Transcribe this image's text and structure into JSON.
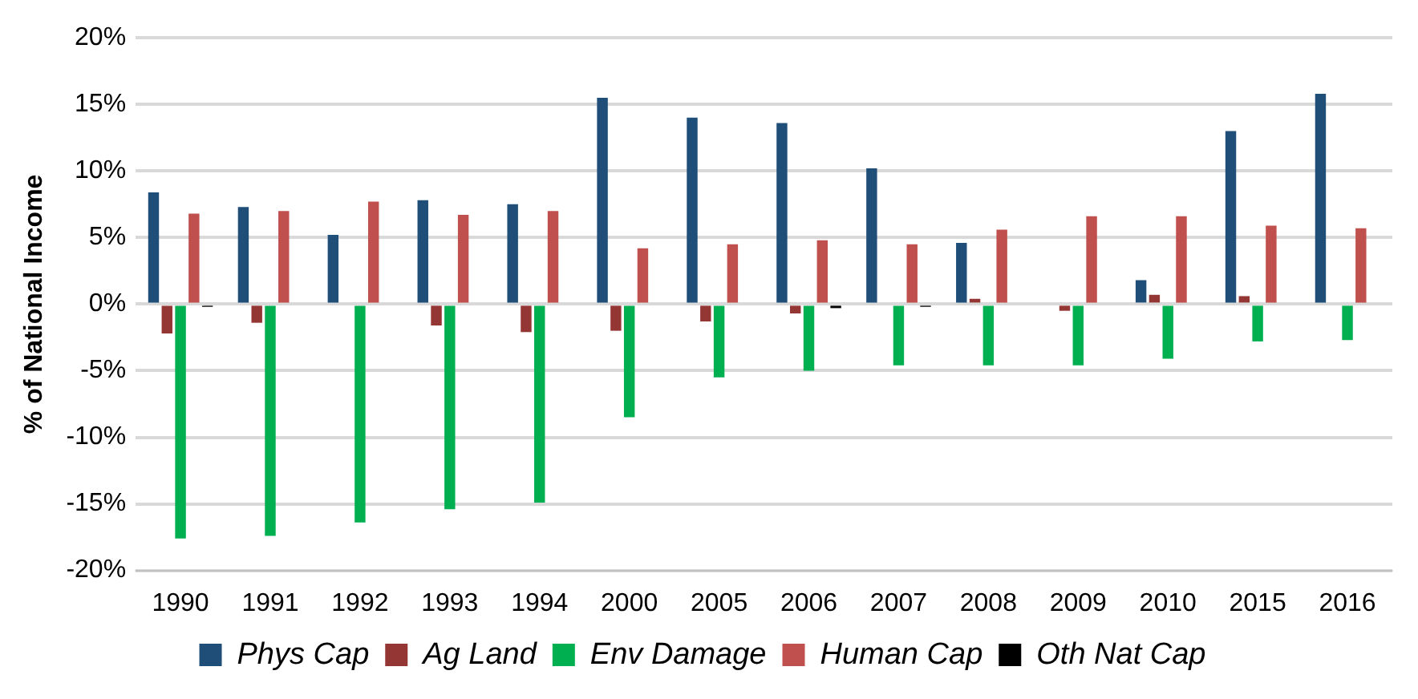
{
  "chart_data": {
    "type": "bar",
    "ylabel": "% of National Income",
    "categories": [
      "1990",
      "1991",
      "1992",
      "1993",
      "1994",
      "2000",
      "2005",
      "2006",
      "2007",
      "2008",
      "2009",
      "2010",
      "2015",
      "2016"
    ],
    "series": [
      {
        "name": "Phys Cap",
        "color": "#1f4e79",
        "values": [
          8.4,
          7.3,
          5.2,
          7.8,
          7.5,
          15.5,
          14.0,
          13.6,
          10.2,
          4.6,
          0,
          1.8,
          13.0,
          15.8
        ]
      },
      {
        "name": "Ag Land",
        "color": "#943634",
        "values": [
          -2.2,
          -1.4,
          null,
          -1.6,
          -2.1,
          -2.0,
          -1.3,
          -0.7,
          null,
          0.4,
          -0.5,
          0.7,
          0.6,
          0
        ]
      },
      {
        "name": "Env Damage",
        "color": "#00b050",
        "values": [
          -17.6,
          -17.4,
          -16.4,
          -15.4,
          -14.9,
          -8.5,
          -5.5,
          -5.0,
          -4.6,
          -4.6,
          -4.6,
          -4.1,
          -2.8,
          -2.7
        ]
      },
      {
        "name": "Human Cap",
        "color": "#c0504d",
        "values": [
          6.8,
          7.0,
          7.7,
          6.7,
          7.0,
          4.2,
          4.5,
          4.8,
          4.5,
          5.6,
          6.6,
          6.6,
          5.9,
          5.7
        ]
      },
      {
        "name": "Oth Nat Cap",
        "color": "#000000",
        "values": [
          -0.2,
          0,
          null,
          0,
          0,
          0,
          0,
          -0.3,
          -0.2,
          0,
          0,
          null,
          0,
          0
        ]
      }
    ],
    "ylim": [
      -20,
      20
    ],
    "yticks": [
      {
        "value": -20,
        "label": "-20%"
      },
      {
        "value": -15,
        "label": "-15%"
      },
      {
        "value": -10,
        "label": "-10%"
      },
      {
        "value": -5,
        "label": "-5%"
      },
      {
        "value": 0,
        "label": "0%"
      },
      {
        "value": 5,
        "label": "5%"
      },
      {
        "value": 10,
        "label": "10%"
      },
      {
        "value": 15,
        "label": "15%"
      },
      {
        "value": 20,
        "label": "20%"
      }
    ],
    "grid": "y",
    "legend": "bottom"
  }
}
